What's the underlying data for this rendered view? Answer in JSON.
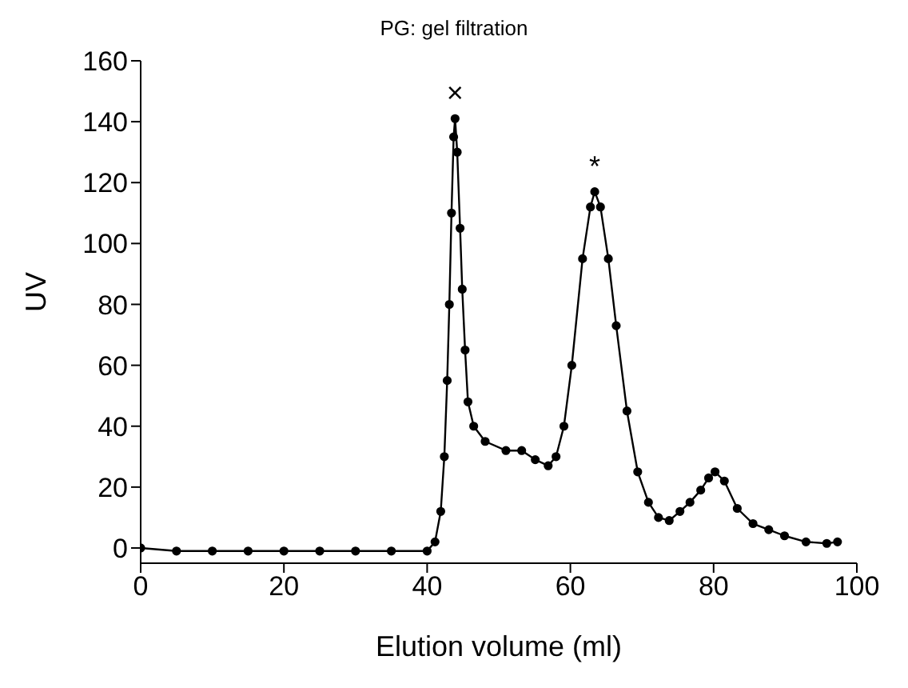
{
  "chart_data": {
    "type": "line",
    "title": "PG: gel filtration",
    "xlabel": "Elution volume (ml)",
    "ylabel": "UV",
    "x": [
      0,
      5,
      10,
      15,
      20,
      25,
      30,
      35,
      40,
      41.1,
      41.9,
      42.4,
      42.8,
      43.1,
      43.4,
      43.7,
      43.9,
      44.2,
      44.6,
      44.9,
      45.3,
      45.7,
      46.5,
      48.1,
      51,
      53.2,
      55.1,
      56.9,
      58,
      59.1,
      60.2,
      61.7,
      62.8,
      63.4,
      64.2,
      65.3,
      66.4,
      67.9,
      69.4,
      70.9,
      72.3,
      73.8,
      75.3,
      76.7,
      78.2,
      79.3,
      80.2,
      81.5,
      83.3,
      85.5,
      87.7,
      89.9,
      92.9,
      95.8,
      97.3
    ],
    "series": [
      {
        "color": "#000000",
        "values": [
          0,
          -1,
          -1,
          -1,
          -1,
          -1,
          -1,
          -1,
          -1,
          2,
          12,
          30,
          55,
          80,
          110,
          135,
          141,
          130,
          105,
          85,
          65,
          48,
          40,
          35,
          32,
          32,
          29,
          27,
          30,
          40,
          60,
          95,
          112,
          117,
          112,
          95,
          73,
          45,
          25,
          15,
          10,
          9,
          12,
          15,
          19,
          23,
          25,
          22,
          13,
          8,
          6,
          4,
          2,
          1.5,
          2
        ]
      }
    ],
    "xlim": [
      0,
      100
    ],
    "xticks": [
      0,
      20,
      40,
      60,
      80,
      100
    ],
    "ylim": [
      -5,
      160
    ],
    "yticks": [
      0,
      20,
      40,
      60,
      80,
      100,
      120,
      140,
      160
    ],
    "marker": "circle",
    "line_style": "solid",
    "grid": false,
    "annotations": [
      {
        "text": "×",
        "x": 43.9,
        "y": 141
      },
      {
        "text": "*",
        "x": 63.4,
        "y": 117
      }
    ]
  }
}
